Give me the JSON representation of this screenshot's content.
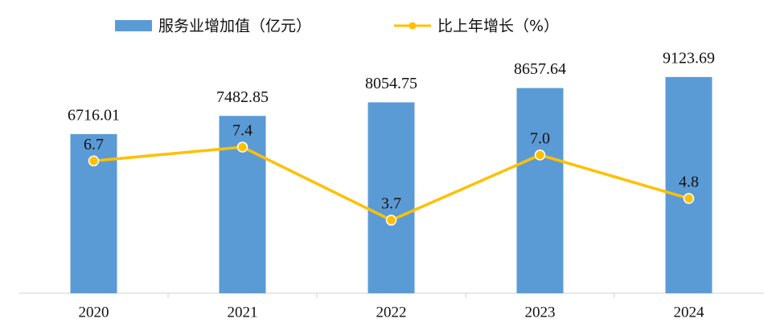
{
  "chart_data": {
    "type": "bar-line",
    "categories": [
      "2020",
      "2021",
      "2022",
      "2023",
      "2024"
    ],
    "series": [
      {
        "name": "服务业增加值（亿元）",
        "type": "bar",
        "color": "#5b9bd5",
        "values": [
          6716.01,
          7482.85,
          8054.75,
          8657.64,
          9123.69
        ]
      },
      {
        "name": "比上年增长（%）",
        "type": "line",
        "axis": "y2",
        "color": "#ffc000",
        "values": [
          6.7,
          7.4,
          3.7,
          7.0,
          4.8
        ],
        "value_labels": [
          "6.7",
          "7.4",
          "3.7",
          "7.0",
          "4.8"
        ]
      }
    ],
    "ylim": [
      0,
      10000
    ],
    "y2lim": [
      0,
      12
    ],
    "legend": "top"
  }
}
